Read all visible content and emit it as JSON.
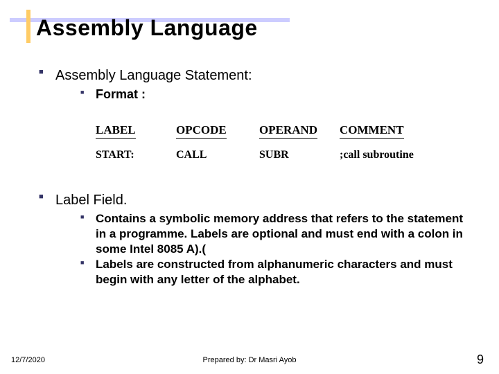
{
  "title": "Assembly Language",
  "section1": {
    "heading": "Assembly Language Statement:",
    "sub1": "Format :"
  },
  "stmt": {
    "headers": {
      "c0": "LABEL",
      "c1": "OPCODE",
      "c2": "OPERAND",
      "c3": "COMMENT"
    },
    "row": {
      "c0": "START:",
      "c1": "CALL",
      "c2": "SUBR",
      "c3": ";call subroutine"
    }
  },
  "section2": {
    "heading": "Label Field.",
    "sub1": "Contains a symbolic memory address that refers to the statement in a programme. Labels are optional and must end with a colon in some Intel 8085 A).(",
    "sub2": "Labels are constructed from alphanumeric characters and must begin with any letter of the alphabet."
  },
  "footer": {
    "date": "12/7/2020",
    "center": "Prepared by: Dr Masri Ayob",
    "page": "9"
  },
  "colors": {
    "accent_h": "#ccccff",
    "accent_v": "#ffcc66",
    "bullet": "#333366"
  }
}
